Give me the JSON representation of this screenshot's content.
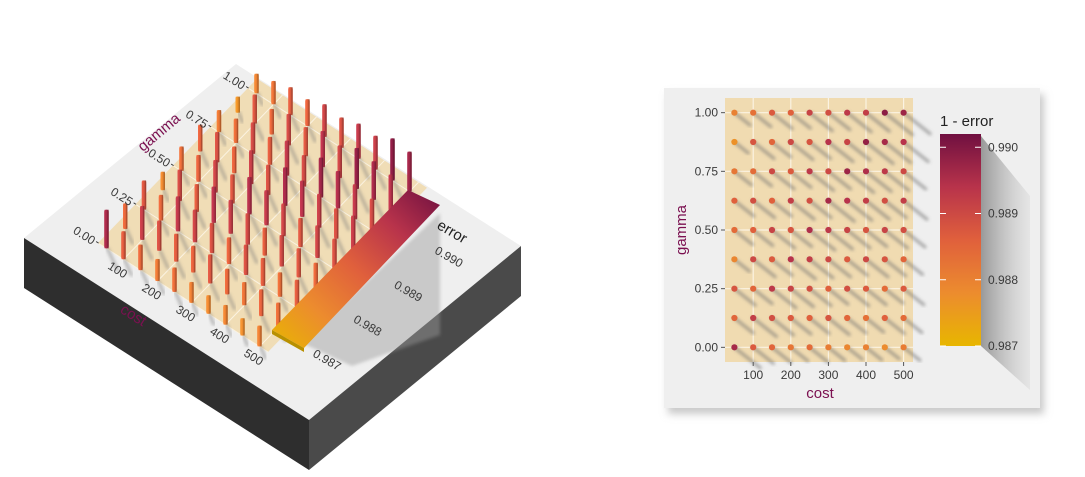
{
  "chart_data": [
    {
      "type": "bar",
      "view": "3d-isometric",
      "xlabel": "cost",
      "ylabel": "gamma",
      "x_ticks": [
        100,
        200,
        300,
        400,
        500
      ],
      "y_ticks": [
        "0.00",
        "0.25",
        "0.50",
        "0.75",
        "1.00"
      ],
      "xlim": [
        25,
        525
      ],
      "ylim": [
        0,
        1
      ],
      "x": [
        50,
        100,
        150,
        200,
        250,
        300,
        350,
        400,
        450,
        500
      ],
      "y": [
        0.0,
        0.125,
        0.25,
        0.375,
        0.5,
        0.625,
        0.75,
        0.875,
        1.0
      ],
      "values": [
        [
          0.9896,
          0.9885,
          0.9888,
          0.9879,
          0.9884,
          0.9886,
          0.9882,
          0.9877,
          0.988
        ],
        [
          0.9887,
          0.9892,
          0.9885,
          0.989,
          0.9886,
          0.9889,
          0.9884,
          0.9888,
          0.9883
        ],
        [
          0.9885,
          0.9889,
          0.9893,
          0.9887,
          0.9891,
          0.9886,
          0.989,
          0.9885,
          0.9887
        ],
        [
          0.9882,
          0.9887,
          0.9891,
          0.9894,
          0.9888,
          0.9892,
          0.9887,
          0.989,
          0.9886
        ],
        [
          0.9884,
          0.9886,
          0.9889,
          0.9892,
          0.9895,
          0.9889,
          0.9893,
          0.9888,
          0.9891
        ],
        [
          0.9881,
          0.9888,
          0.9886,
          0.989,
          0.9893,
          0.9896,
          0.989,
          0.9894,
          0.9889
        ],
        [
          0.9879,
          0.9885,
          0.9889,
          0.9887,
          0.9891,
          0.9894,
          0.9897,
          0.9891,
          0.9893
        ],
        [
          0.988,
          0.9883,
          0.9887,
          0.989,
          0.9888,
          0.9892,
          0.9895,
          0.9898,
          0.9892
        ],
        [
          0.9878,
          0.9886,
          0.9884,
          0.9888,
          0.9891,
          0.9889,
          0.9893,
          0.9896,
          0.9899
        ],
        [
          0.9881,
          0.9884,
          0.9887,
          0.9885,
          0.9889,
          0.9892,
          0.989,
          0.9894,
          0.9897
        ]
      ],
      "legend": {
        "title": "error",
        "ticks": [
          "0.987",
          "0.988",
          "0.989",
          "0.990"
        ],
        "range": [
          0.987,
          0.9902
        ],
        "placement": "right"
      },
      "colors": [
        "#e8b600",
        "#ec8c2e",
        "#e0603c",
        "#b8334b",
        "#701040"
      ],
      "grid": true
    },
    {
      "type": "scatter",
      "view": "2d-with-shadows",
      "xlabel": "cost",
      "ylabel": "gamma",
      "x_ticks": [
        100,
        200,
        300,
        400,
        500
      ],
      "y_ticks": [
        "0.00",
        "0.25",
        "0.50",
        "0.75",
        "1.00"
      ],
      "xlim": [
        25,
        525
      ],
      "ylim": [
        -0.0625,
        1.0625
      ],
      "x": [
        50,
        100,
        150,
        200,
        250,
        300,
        350,
        400,
        450,
        500
      ],
      "y": [
        0.0,
        0.125,
        0.25,
        0.375,
        0.5,
        0.625,
        0.75,
        0.875,
        1.0
      ],
      "values": [
        [
          0.9896,
          0.9885,
          0.9888,
          0.9879,
          0.9884,
          0.9886,
          0.9882,
          0.9877,
          0.988
        ],
        [
          0.9887,
          0.9892,
          0.9885,
          0.989,
          0.9886,
          0.9889,
          0.9884,
          0.9888,
          0.9883
        ],
        [
          0.9885,
          0.9889,
          0.9893,
          0.9887,
          0.9891,
          0.9886,
          0.989,
          0.9885,
          0.9887
        ],
        [
          0.9882,
          0.9887,
          0.9891,
          0.9894,
          0.9888,
          0.9892,
          0.9887,
          0.989,
          0.9886
        ],
        [
          0.9884,
          0.9886,
          0.9889,
          0.9892,
          0.9895,
          0.9889,
          0.9893,
          0.9888,
          0.9891
        ],
        [
          0.9881,
          0.9888,
          0.9886,
          0.989,
          0.9893,
          0.9896,
          0.989,
          0.9894,
          0.9889
        ],
        [
          0.9879,
          0.9885,
          0.9889,
          0.9887,
          0.9891,
          0.9894,
          0.9897,
          0.9891,
          0.9893
        ],
        [
          0.988,
          0.9883,
          0.9887,
          0.989,
          0.9888,
          0.9892,
          0.9895,
          0.9898,
          0.9892
        ],
        [
          0.9878,
          0.9886,
          0.9884,
          0.9888,
          0.9891,
          0.9889,
          0.9893,
          0.9896,
          0.9899
        ],
        [
          0.9881,
          0.9884,
          0.9887,
          0.9885,
          0.9889,
          0.9892,
          0.989,
          0.9894,
          0.9897
        ]
      ],
      "legend": {
        "title": "1 - error",
        "ticks": [
          "0.990",
          "0.989",
          "0.988",
          "0.987"
        ],
        "range": [
          0.987,
          0.9902
        ],
        "placement": "right"
      },
      "colors": [
        "#e8b600",
        "#ec8c2e",
        "#e0603c",
        "#b8334b",
        "#701040"
      ],
      "grid": true
    }
  ]
}
